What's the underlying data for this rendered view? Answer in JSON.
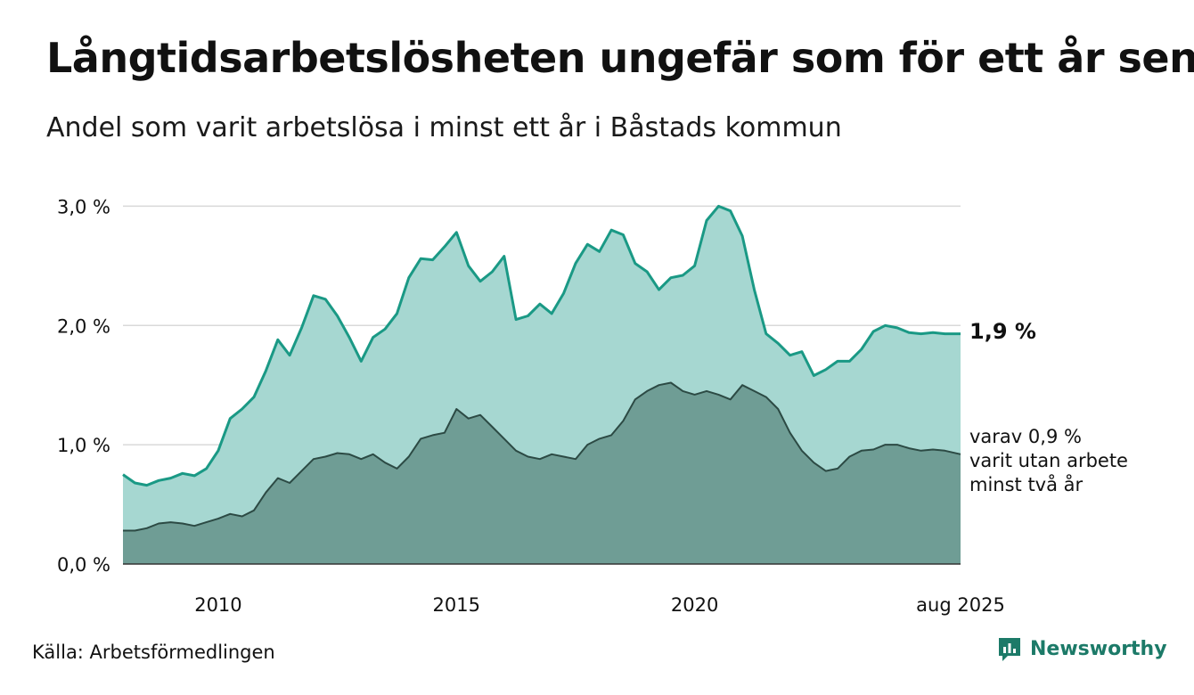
{
  "header": {
    "title": "Långtidsarbetslösheten ungefär som för ett år sen",
    "subtitle": "Andel som varit arbetslösa i minst ett år i Båstads kommun"
  },
  "footer": {
    "source": "Källa: Arbetsförmedlingen",
    "brand": "Newsworthy"
  },
  "colors": {
    "total_line": "#1a9985",
    "total_fill": "#a6d7d1",
    "long_line": "#2c4a44",
    "long_fill": "#6f9d95",
    "grid": "#d9d9d9"
  },
  "chart_data": {
    "type": "area",
    "y_ticks": [
      "0,0 %",
      "1,0 %",
      "2,0 %",
      "3,0 %"
    ],
    "y_tick_values": [
      0,
      1,
      2,
      3
    ],
    "ylim": [
      0,
      3.1
    ],
    "x_ticks": [
      "2010",
      "2015",
      "2020",
      "aug 2025"
    ],
    "x_tick_values": [
      2010.0,
      2015.0,
      2020.0,
      2025.58
    ],
    "xlim": [
      2008.0,
      2025.58
    ],
    "grid": true,
    "end_labels": {
      "total": "1,9 %",
      "long_lines": [
        "varav 0,9 %",
        "varit utan arbete",
        "minst två år"
      ]
    },
    "series": [
      {
        "key": "total",
        "x": [
          2008.0,
          2008.25,
          2008.5,
          2008.75,
          2009.0,
          2009.25,
          2009.5,
          2009.75,
          2010.0,
          2010.25,
          2010.5,
          2010.75,
          2011.0,
          2011.25,
          2011.5,
          2011.75,
          2012.0,
          2012.25,
          2012.5,
          2012.75,
          2013.0,
          2013.25,
          2013.5,
          2013.75,
          2014.0,
          2014.25,
          2014.5,
          2014.75,
          2015.0,
          2015.25,
          2015.5,
          2015.75,
          2016.0,
          2016.25,
          2016.5,
          2016.75,
          2017.0,
          2017.25,
          2017.5,
          2017.75,
          2018.0,
          2018.25,
          2018.5,
          2018.75,
          2019.0,
          2019.25,
          2019.5,
          2019.75,
          2020.0,
          2020.25,
          2020.5,
          2020.75,
          2021.0,
          2021.25,
          2021.5,
          2021.75,
          2022.0,
          2022.25,
          2022.5,
          2022.75,
          2023.0,
          2023.25,
          2023.5,
          2023.75,
          2024.0,
          2024.25,
          2024.5,
          2024.75,
          2025.0,
          2025.25,
          2025.58
        ],
        "values": [
          0.75,
          0.68,
          0.66,
          0.7,
          0.72,
          0.76,
          0.74,
          0.8,
          0.95,
          1.22,
          1.3,
          1.4,
          1.62,
          1.88,
          1.75,
          1.98,
          2.25,
          2.22,
          2.08,
          1.9,
          1.7,
          1.9,
          1.97,
          2.1,
          2.4,
          2.56,
          2.55,
          2.66,
          2.78,
          2.5,
          2.37,
          2.45,
          2.58,
          2.05,
          2.08,
          2.18,
          2.1,
          2.27,
          2.52,
          2.68,
          2.62,
          2.8,
          2.76,
          2.52,
          2.45,
          2.3,
          2.4,
          2.42,
          2.5,
          2.88,
          3.0,
          2.96,
          2.75,
          2.3,
          1.93,
          1.85,
          1.75,
          1.78,
          1.58,
          1.63,
          1.7,
          1.7,
          1.8,
          1.95,
          2.0,
          1.98,
          1.94,
          1.93,
          1.94,
          1.93,
          1.93
        ]
      },
      {
        "key": "long",
        "x": [
          2008.0,
          2008.25,
          2008.5,
          2008.75,
          2009.0,
          2009.25,
          2009.5,
          2009.75,
          2010.0,
          2010.25,
          2010.5,
          2010.75,
          2011.0,
          2011.25,
          2011.5,
          2011.75,
          2012.0,
          2012.25,
          2012.5,
          2012.75,
          2013.0,
          2013.25,
          2013.5,
          2013.75,
          2014.0,
          2014.25,
          2014.5,
          2014.75,
          2015.0,
          2015.25,
          2015.5,
          2015.75,
          2016.0,
          2016.25,
          2016.5,
          2016.75,
          2017.0,
          2017.25,
          2017.5,
          2017.75,
          2018.0,
          2018.25,
          2018.5,
          2018.75,
          2019.0,
          2019.25,
          2019.5,
          2019.75,
          2020.0,
          2020.25,
          2020.5,
          2020.75,
          2021.0,
          2021.25,
          2021.5,
          2021.75,
          2022.0,
          2022.25,
          2022.5,
          2022.75,
          2023.0,
          2023.25,
          2023.5,
          2023.75,
          2024.0,
          2024.25,
          2024.5,
          2024.75,
          2025.0,
          2025.25,
          2025.58
        ],
        "values": [
          0.28,
          0.28,
          0.3,
          0.34,
          0.35,
          0.34,
          0.32,
          0.35,
          0.38,
          0.42,
          0.4,
          0.45,
          0.6,
          0.72,
          0.68,
          0.78,
          0.88,
          0.9,
          0.93,
          0.92,
          0.88,
          0.92,
          0.85,
          0.8,
          0.9,
          1.05,
          1.08,
          1.1,
          1.3,
          1.22,
          1.25,
          1.15,
          1.05,
          0.95,
          0.9,
          0.88,
          0.92,
          0.9,
          0.88,
          1.0,
          1.05,
          1.08,
          1.2,
          1.38,
          1.45,
          1.5,
          1.52,
          1.45,
          1.42,
          1.45,
          1.42,
          1.38,
          1.5,
          1.45,
          1.4,
          1.3,
          1.1,
          0.95,
          0.85,
          0.78,
          0.8,
          0.9,
          0.95,
          0.96,
          1.0,
          1.0,
          0.97,
          0.95,
          0.96,
          0.95,
          0.92
        ]
      }
    ]
  }
}
